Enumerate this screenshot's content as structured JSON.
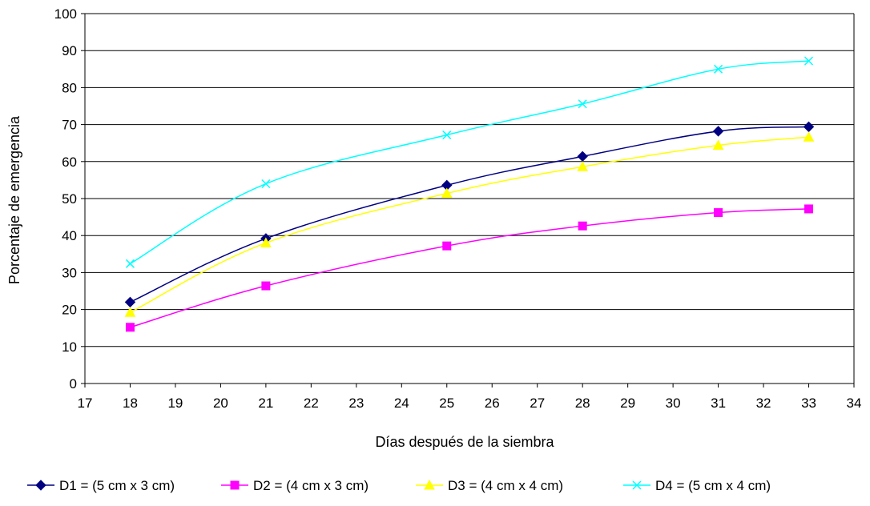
{
  "chart_data": {
    "type": "line",
    "title": "",
    "xlabel": "Días después de la siembra",
    "ylabel": "Porcentaje de emergencia",
    "xlim": [
      17,
      34
    ],
    "ylim": [
      0,
      100
    ],
    "x_ticks": [
      17,
      18,
      19,
      20,
      21,
      22,
      23,
      24,
      25,
      26,
      27,
      28,
      29,
      30,
      31,
      32,
      33,
      34
    ],
    "y_ticks": [
      0,
      10,
      20,
      30,
      40,
      50,
      60,
      70,
      80,
      90,
      100
    ],
    "grid": "horizontal",
    "legend_position": "bottom",
    "x": [
      18,
      21,
      25,
      28,
      31,
      33
    ],
    "series": [
      {
        "name": "D1 = (5 cm x 3 cm)",
        "color": "#000080",
        "marker": "diamond",
        "values": [
          22.0,
          39.2,
          53.6,
          61.4,
          68.2,
          69.4
        ]
      },
      {
        "name": "D2 = (4 cm x 3 cm)",
        "color": "#FF00FF",
        "marker": "square",
        "values": [
          15.2,
          26.4,
          37.2,
          42.6,
          46.2,
          47.2
        ]
      },
      {
        "name": "D3 = (4 cm x 4 cm)",
        "color": "#FFFF00",
        "marker": "triangle",
        "values": [
          19.2,
          38.0,
          51.4,
          58.6,
          64.4,
          66.6
        ]
      },
      {
        "name": "D4 = (5 cm x 4 cm)",
        "color": "#00FFFF",
        "marker": "x",
        "values": [
          32.4,
          54.0,
          67.2,
          75.6,
          85.0,
          87.2
        ]
      }
    ]
  }
}
